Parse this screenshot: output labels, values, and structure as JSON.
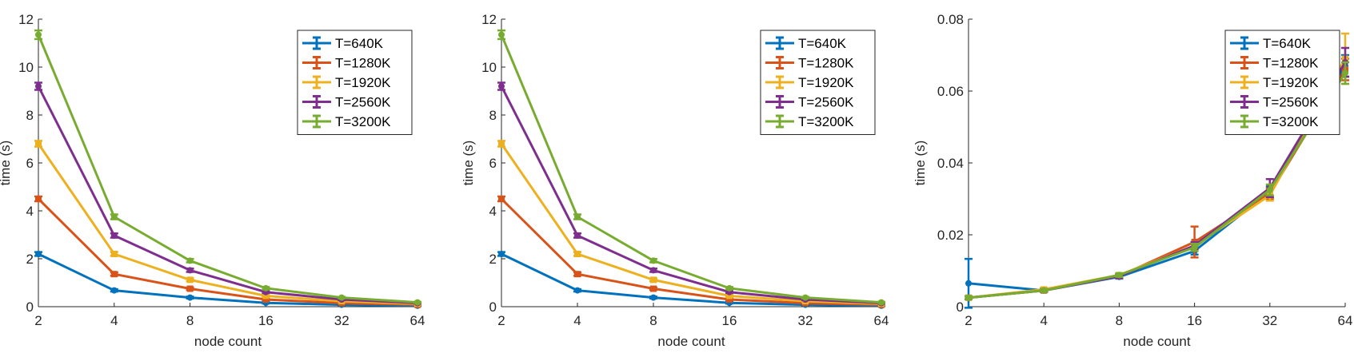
{
  "chart_data": [
    {
      "type": "line",
      "errorbars": true,
      "x": [
        2,
        4,
        8,
        16,
        32,
        64
      ],
      "x_tick_labels": [
        "2",
        "4",
        "8",
        "16",
        "32",
        "64"
      ],
      "x_scale": "log2",
      "xlabel": "node count",
      "ylabel": "time (s)",
      "ylim": [
        0,
        12
      ],
      "y_ticks": [
        0,
        2,
        4,
        6,
        8,
        10,
        12
      ],
      "y_tick_labels": [
        "0",
        "2",
        "4",
        "6",
        "8",
        "10",
        "12"
      ],
      "legend_position": "top-right",
      "series": [
        {
          "name": "T=640K",
          "color": "#0072BD",
          "values": [
            2.2,
            0.68,
            0.38,
            0.16,
            0.08,
            0.04
          ],
          "errors": [
            0.08,
            0.05,
            0.04,
            0.03,
            0.02,
            0.02
          ]
        },
        {
          "name": "T=1280K",
          "color": "#D95319",
          "values": [
            4.5,
            1.36,
            0.75,
            0.3,
            0.15,
            0.08
          ],
          "errors": [
            0.1,
            0.07,
            0.05,
            0.03,
            0.02,
            0.02
          ]
        },
        {
          "name": "T=1920K",
          "color": "#EDB120",
          "values": [
            6.8,
            2.2,
            1.12,
            0.45,
            0.23,
            0.12
          ],
          "errors": [
            0.12,
            0.08,
            0.06,
            0.04,
            0.03,
            0.02
          ]
        },
        {
          "name": "T=2560K",
          "color": "#7E2F8E",
          "values": [
            9.2,
            2.97,
            1.52,
            0.61,
            0.3,
            0.15
          ],
          "errors": [
            0.15,
            0.09,
            0.07,
            0.04,
            0.03,
            0.02
          ]
        },
        {
          "name": "T=3200K",
          "color": "#77AC30",
          "values": [
            11.35,
            3.75,
            1.92,
            0.77,
            0.38,
            0.18
          ],
          "errors": [
            0.18,
            0.1,
            0.07,
            0.05,
            0.03,
            0.02
          ]
        }
      ]
    },
    {
      "type": "line",
      "errorbars": true,
      "x": [
        2,
        4,
        8,
        16,
        32,
        64
      ],
      "x_tick_labels": [
        "2",
        "4",
        "8",
        "16",
        "32",
        "64"
      ],
      "x_scale": "log2",
      "xlabel": "node count",
      "ylabel": "time (s)",
      "ylim": [
        0,
        12
      ],
      "y_ticks": [
        0,
        2,
        4,
        6,
        8,
        10,
        12
      ],
      "y_tick_labels": [
        "0",
        "2",
        "4",
        "6",
        "8",
        "10",
        "12"
      ],
      "legend_position": "top-right",
      "series": [
        {
          "name": "T=640K",
          "color": "#0072BD",
          "values": [
            2.2,
            0.68,
            0.38,
            0.16,
            0.08,
            0.04
          ],
          "errors": [
            0.08,
            0.05,
            0.04,
            0.03,
            0.02,
            0.02
          ]
        },
        {
          "name": "T=1280K",
          "color": "#D95319",
          "values": [
            4.5,
            1.36,
            0.75,
            0.3,
            0.15,
            0.08
          ],
          "errors": [
            0.1,
            0.07,
            0.05,
            0.03,
            0.02,
            0.02
          ]
        },
        {
          "name": "T=1920K",
          "color": "#EDB120",
          "values": [
            6.8,
            2.2,
            1.12,
            0.45,
            0.23,
            0.12
          ],
          "errors": [
            0.12,
            0.08,
            0.06,
            0.04,
            0.03,
            0.02
          ]
        },
        {
          "name": "T=2560K",
          "color": "#7E2F8E",
          "values": [
            9.2,
            2.97,
            1.52,
            0.61,
            0.3,
            0.15
          ],
          "errors": [
            0.15,
            0.09,
            0.07,
            0.04,
            0.03,
            0.02
          ]
        },
        {
          "name": "T=3200K",
          "color": "#77AC30",
          "values": [
            11.35,
            3.75,
            1.92,
            0.77,
            0.38,
            0.18
          ],
          "errors": [
            0.18,
            0.1,
            0.07,
            0.05,
            0.03,
            0.02
          ]
        }
      ]
    },
    {
      "type": "line",
      "errorbars": true,
      "x": [
        2,
        4,
        8,
        16,
        32,
        64
      ],
      "x_tick_labels": [
        "2",
        "4",
        "8",
        "16",
        "32",
        "64"
      ],
      "x_scale": "log2",
      "xlabel": "node count",
      "ylabel": "time (s)",
      "ylim": [
        0,
        0.08
      ],
      "y_ticks": [
        0,
        0.02,
        0.04,
        0.06,
        0.08
      ],
      "y_tick_labels": [
        "0",
        "0.02",
        "0.04",
        "0.06",
        "0.08"
      ],
      "legend_position": "top-right",
      "series": [
        {
          "name": "T=640K",
          "color": "#0072BD",
          "values": [
            0.0065,
            0.0045,
            0.0083,
            0.0155,
            0.032,
            0.067
          ],
          "errors": [
            0.0068,
            0.0004,
            0.0005,
            0.001,
            0.0015,
            0.003
          ]
        },
        {
          "name": "T=1280K",
          "color": "#D95319",
          "values": [
            0.0025,
            0.0045,
            0.0085,
            0.018,
            0.0315,
            0.066
          ],
          "errors": [
            0.0004,
            0.0004,
            0.0005,
            0.0043,
            0.0015,
            0.003
          ]
        },
        {
          "name": "T=1920K",
          "color": "#EDB120",
          "values": [
            0.0025,
            0.0048,
            0.0088,
            0.017,
            0.031,
            0.069
          ],
          "errors": [
            0.0004,
            0.0004,
            0.0005,
            0.001,
            0.0015,
            0.007
          ]
        },
        {
          "name": "T=2560K",
          "color": "#7E2F8E",
          "values": [
            0.0025,
            0.0045,
            0.0085,
            0.017,
            0.033,
            0.068
          ],
          "errors": [
            0.0004,
            0.0004,
            0.0005,
            0.001,
            0.0025,
            0.004
          ]
        },
        {
          "name": "T=3200K",
          "color": "#77AC30",
          "values": [
            0.0025,
            0.0045,
            0.0088,
            0.0165,
            0.0325,
            0.065
          ],
          "errors": [
            0.0004,
            0.0004,
            0.0005,
            0.001,
            0.0015,
            0.003
          ]
        }
      ]
    }
  ]
}
